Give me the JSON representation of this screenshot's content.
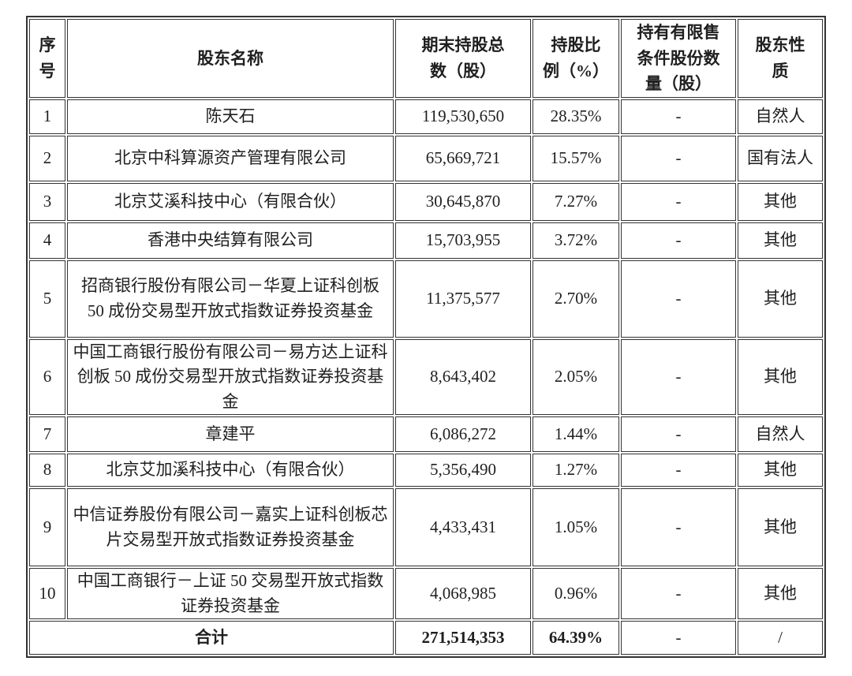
{
  "page": {
    "background_color": "#ffffff",
    "text_color": "#1f1f1f",
    "border_color": "#333333"
  },
  "table": {
    "headers": [
      {
        "label": "序号",
        "lines": [
          "序",
          "号"
        ]
      },
      {
        "label": "股东名称",
        "lines": [
          "股东名称"
        ]
      },
      {
        "label": "期末持股总数（股）",
        "lines": [
          "期末持股总",
          "数（股）"
        ]
      },
      {
        "label": "持股比例（%）",
        "lines": [
          "持股比",
          "例（%）"
        ]
      },
      {
        "label": "持有有限售条件股份数量（股）",
        "lines": [
          "持有有限售",
          "条件股份数",
          "量（股）"
        ]
      },
      {
        "label": "股东性质",
        "lines": [
          "股东性",
          "质"
        ]
      }
    ],
    "rows": [
      {
        "index": "1",
        "name": "陈天石",
        "shares": "119,530,650",
        "ratio": "28.35%",
        "restricted": "-",
        "nature": "自然人"
      },
      {
        "index": "2",
        "name": "北京中科算源资产管理有限公司",
        "shares": "65,669,721",
        "ratio": "15.57%",
        "restricted": "-",
        "nature": "国有法人"
      },
      {
        "index": "3",
        "name": "北京艾溪科技中心（有限合伙）",
        "shares": "30,645,870",
        "ratio": "7.27%",
        "restricted": "-",
        "nature": "其他"
      },
      {
        "index": "4",
        "name": "香港中央结算有限公司",
        "shares": "15,703,955",
        "ratio": "3.72%",
        "restricted": "-",
        "nature": "其他"
      },
      {
        "index": "5",
        "name": "招商银行股份有限公司－华夏上证科创板 50 成份交易型开放式指数证券投资基金",
        "shares": "11,375,577",
        "ratio": "2.70%",
        "restricted": "-",
        "nature": "其他"
      },
      {
        "index": "6",
        "name": "中国工商银行股份有限公司－易方达上证科创板 50 成份交易型开放式指数证券投资基金",
        "shares": "8,643,402",
        "ratio": "2.05%",
        "restricted": "-",
        "nature": "其他"
      },
      {
        "index": "7",
        "name": "章建平",
        "shares": "6,086,272",
        "ratio": "1.44%",
        "restricted": "-",
        "nature": "自然人"
      },
      {
        "index": "8",
        "name": "北京艾加溪科技中心（有限合伙）",
        "shares": "5,356,490",
        "ratio": "1.27%",
        "restricted": "-",
        "nature": "其他"
      },
      {
        "index": "9",
        "name": "中信证券股份有限公司－嘉实上证科创板芯片交易型开放式指数证券投资基金",
        "shares": "4,433,431",
        "ratio": "1.05%",
        "restricted": "-",
        "nature": "其他"
      },
      {
        "index": "10",
        "name": "中国工商银行－上证 50 交易型开放式指数证券投资基金",
        "shares": "4,068,985",
        "ratio": "0.96%",
        "restricted": "-",
        "nature": "其他"
      }
    ],
    "total_row": {
      "label": "合计",
      "shares": "271,514,353",
      "ratio": "64.39%",
      "restricted": "-",
      "nature": "/"
    }
  }
}
